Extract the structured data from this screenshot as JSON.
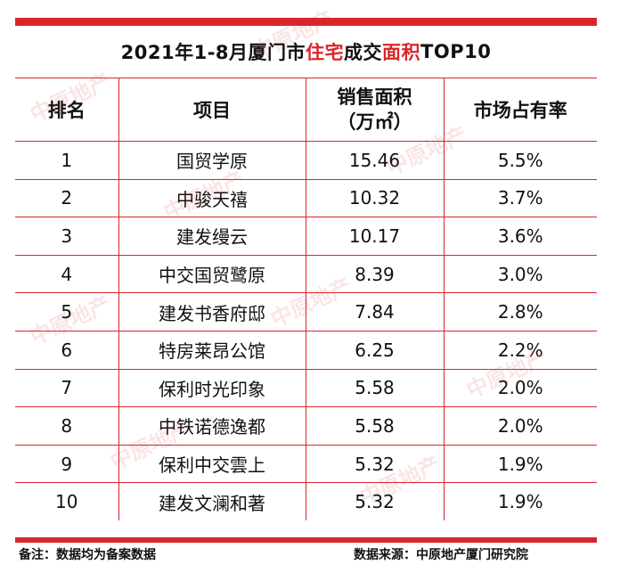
{
  "title": {
    "part1": "2021年1-8月厦门市",
    "highlight1": "住宅",
    "part2": "成交",
    "highlight2": "面积",
    "part3": "TOP10"
  },
  "columns": {
    "rank": "排名",
    "project": "项目",
    "area_line1": "销售面积",
    "area_line2": "（万㎡）",
    "share": "市场占有率"
  },
  "rows": [
    {
      "rank": "1",
      "project": "国贸学原",
      "area": "15.46",
      "share": "5.5%"
    },
    {
      "rank": "2",
      "project": "中骏天禧",
      "area": "10.32",
      "share": "3.7%"
    },
    {
      "rank": "3",
      "project": "建发缦云",
      "area": "10.17",
      "share": "3.6%"
    },
    {
      "rank": "4",
      "project": "中交国贸鹭原",
      "area": "8.39",
      "share": "3.0%"
    },
    {
      "rank": "5",
      "project": "建发书香府邸",
      "area": "7.84",
      "share": "2.8%"
    },
    {
      "rank": "6",
      "project": "特房莱昂公馆",
      "area": "6.25",
      "share": "2.2%"
    },
    {
      "rank": "7",
      "project": "保利时光印象",
      "area": "5.58",
      "share": "2.0%"
    },
    {
      "rank": "8",
      "project": "中铁诺德逸都",
      "area": "5.58",
      "share": "2.0%"
    },
    {
      "rank": "9",
      "project": "保利中交雲上",
      "area": "5.32",
      "share": "1.9%"
    },
    {
      "rank": "10",
      "project": "建发文澜和著",
      "area": "5.32",
      "share": "1.9%"
    }
  ],
  "footer": {
    "note": "备注：数据均为备案数据",
    "source": "数据来源：中原地产厦门研究院"
  },
  "watermark_text": "中原地产",
  "colors": {
    "accent": "#d8262c"
  }
}
